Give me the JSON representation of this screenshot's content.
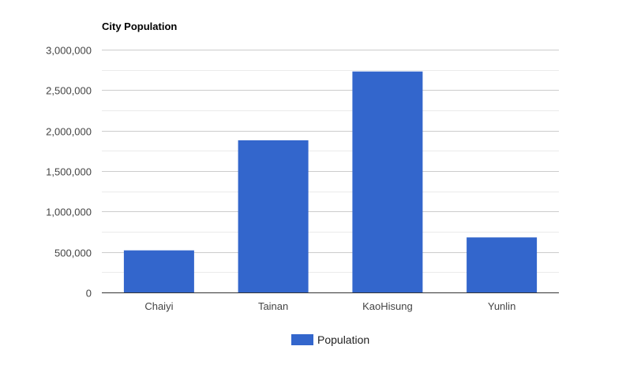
{
  "chart_data": {
    "type": "bar",
    "title": "City Population",
    "categories": [
      "Chaiyi",
      "Tainan",
      "KaoHisung",
      "Yunlin"
    ],
    "series": [
      {
        "name": "Population",
        "values": [
          520000,
          1880000,
          2730000,
          680000
        ]
      }
    ],
    "ylim": [
      0,
      3000000
    ],
    "yticks": [
      0,
      500000,
      1000000,
      1500000,
      2000000,
      2500000,
      3000000
    ],
    "ytick_labels": [
      "0",
      "500,000",
      "1,000,000",
      "1,500,000",
      "2,000,000",
      "2,500,000",
      "3,000,000"
    ],
    "grid": true,
    "minor_grid": true,
    "legend_position": "bottom",
    "colors": {
      "bar": "#3366cc",
      "grid": "#cccccc",
      "minor_grid": "#ebebeb",
      "axis": "#333333"
    }
  }
}
